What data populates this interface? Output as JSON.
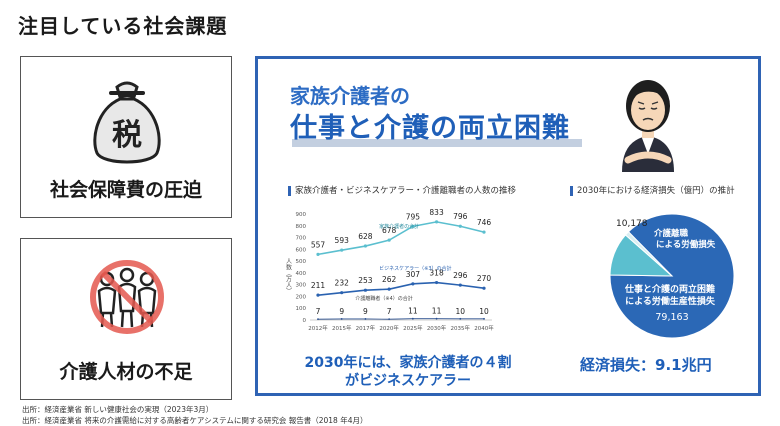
{
  "page_title": "注目している社会課題",
  "card_tax": {
    "icon_char": "税",
    "label": "社会保障費の圧迫"
  },
  "card_care": {
    "label": "介護人材の不足"
  },
  "panel": {
    "headline_line1": "家族介護者の",
    "headline_line2": "仕事と介護の両立困難",
    "line_chart_title": "家族介護者・ビジネスケアラー・介護離職者の人数の推移",
    "pie_chart_title": "2030年における経済損失（億円）の推計",
    "chart_footer_line1": "2030年には、家族介護者の４割",
    "chart_footer_line2": "がビジネスケアラー",
    "pie_footer": "経済損失：9.1兆円"
  },
  "sources": [
    "出所：経済産業省 新しい健康社会の実現（2023年3月）",
    "出所：経済産業省 将来の介護需給に対する高齢者ケアシステムに関する研究会 報告書（2018 年4月）"
  ],
  "chart_data": [
    {
      "type": "line",
      "title": "家族介護者・ビジネスケアラー・介護離職者の人数の推移",
      "ylabel": "人数（万人）",
      "ylim": [
        0,
        900
      ],
      "yticks": [
        0,
        100,
        200,
        300,
        400,
        500,
        600,
        700,
        800,
        900
      ],
      "x": [
        "2012年",
        "2015年",
        "2017年",
        "2020年",
        "2025年",
        "2030年",
        "2035年",
        "2040年"
      ],
      "series": [
        {
          "name": "家族介護者の合計",
          "values": [
            557,
            593,
            628,
            678,
            795,
            833,
            796,
            746
          ],
          "color": "#5bbfcf"
        },
        {
          "name": "ビジネスケアラー（※3）の合計",
          "values": [
            211,
            232,
            253,
            262,
            307,
            318,
            296,
            270
          ],
          "color": "#2a62b0"
        },
        {
          "name": "介護離職者（※4）の合計",
          "values": [
            7,
            9,
            9,
            7,
            11,
            11,
            10,
            10
          ],
          "color": "#2a4f8f"
        }
      ],
      "grid": false
    },
    {
      "type": "pie",
      "title": "2030年における経済損失（億円）の推計",
      "slices": [
        {
          "label": "仕事と介護の両立困難による労働生産性損失",
          "value": 79163,
          "color": "#2b68b6"
        },
        {
          "label": "介護離職による労働損失",
          "value": 10178,
          "color": "#5bbfcf"
        },
        {
          "label": "",
          "value": 1000,
          "color": "#d9eef2"
        }
      ]
    }
  ]
}
